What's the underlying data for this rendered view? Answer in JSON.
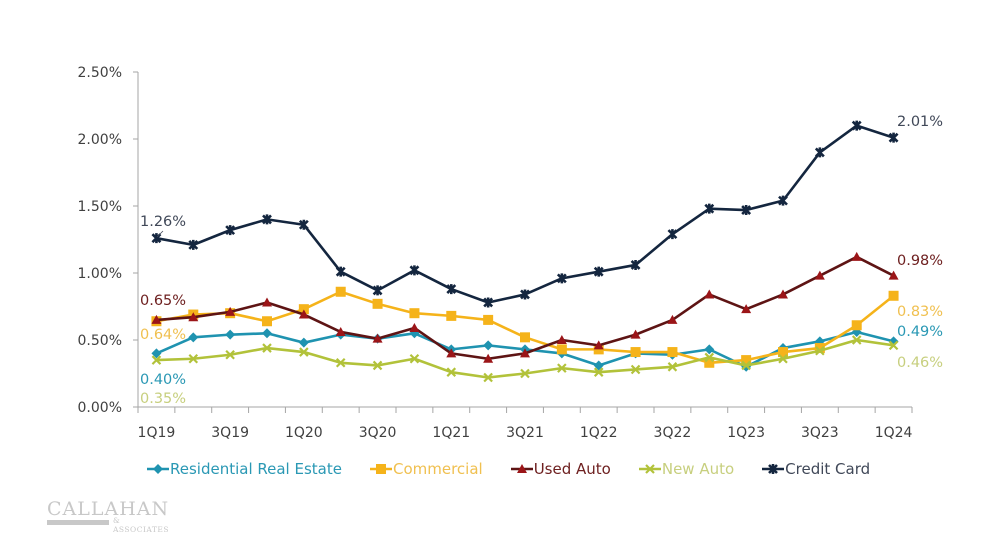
{
  "chart_data": {
    "type": "line",
    "title": "",
    "xlabel": "",
    "ylabel": "",
    "ylim": [
      0,
      2.5
    ],
    "yticks": [
      "0.00%",
      "0.50%",
      "1.00%",
      "1.50%",
      "2.00%",
      "2.50%"
    ],
    "ytick_values": [
      0,
      0.5,
      1.0,
      1.5,
      2.0,
      2.5
    ],
    "x": [
      "1Q19",
      "2Q19",
      "3Q19",
      "4Q19",
      "1Q20",
      "2Q20",
      "3Q20",
      "4Q20",
      "1Q21",
      "2Q21",
      "3Q21",
      "4Q21",
      "1Q22",
      "2Q22",
      "3Q22",
      "4Q22",
      "1Q23",
      "2Q23",
      "3Q23",
      "4Q23",
      "1Q24"
    ],
    "xtick_labels": [
      "1Q19",
      "3Q19",
      "1Q20",
      "3Q20",
      "1Q21",
      "3Q21",
      "1Q22",
      "3Q22",
      "1Q23",
      "3Q23",
      "1Q24"
    ],
    "grid": false,
    "legend_position": "bottom",
    "series": [
      {
        "name": "Residential Real Estate",
        "color": "#1f93b0",
        "marker": "diamond",
        "values": [
          0.4,
          0.52,
          0.54,
          0.55,
          0.48,
          0.54,
          0.51,
          0.55,
          0.43,
          0.46,
          0.43,
          0.4,
          0.31,
          0.4,
          0.39,
          0.43,
          0.3,
          0.44,
          0.49,
          0.56,
          0.49
        ],
        "start_label": "0.40%",
        "end_label": "0.49%"
      },
      {
        "name": "Commercial",
        "color": "#f5b31a",
        "marker": "square",
        "values": [
          0.64,
          0.69,
          0.7,
          0.64,
          0.73,
          0.86,
          0.77,
          0.7,
          0.68,
          0.65,
          0.52,
          0.43,
          0.43,
          0.41,
          0.41,
          0.33,
          0.35,
          0.41,
          0.44,
          0.61,
          0.83
        ],
        "start_label": "0.64%",
        "end_label": "0.83%"
      },
      {
        "name": "Used Auto",
        "color": "#9b1518",
        "line_color": "#5e1414",
        "marker": "triangle",
        "values": [
          0.65,
          0.67,
          0.71,
          0.78,
          0.69,
          0.56,
          0.51,
          0.59,
          0.4,
          0.36,
          0.4,
          0.5,
          0.46,
          0.54,
          0.65,
          0.84,
          0.73,
          0.84,
          0.98,
          1.12,
          0.98
        ],
        "start_label": "0.65%",
        "end_label": "0.98%"
      },
      {
        "name": "New Auto",
        "color": "#b2c23a",
        "marker": "x",
        "values": [
          0.35,
          0.36,
          0.39,
          0.44,
          0.41,
          0.33,
          0.31,
          0.36,
          0.26,
          0.22,
          0.25,
          0.29,
          0.26,
          0.28,
          0.3,
          0.37,
          0.31,
          0.36,
          0.42,
          0.5,
          0.46
        ],
        "start_label": "0.35%",
        "end_label": "0.46%"
      },
      {
        "name": "Credit Card",
        "color": "#14263f",
        "marker": "star",
        "values": [
          1.26,
          1.21,
          1.32,
          1.4,
          1.36,
          1.01,
          0.87,
          1.02,
          0.88,
          0.78,
          0.84,
          0.96,
          1.01,
          1.06,
          1.29,
          1.48,
          1.47,
          1.54,
          1.9,
          2.1,
          2.01
        ],
        "start_label": "1.26%",
        "end_label": "2.01%"
      }
    ]
  },
  "label_colors": {
    "Residential Real Estate": "#2a98b4",
    "Commercial": "#f0c050",
    "Used Auto": "#6e2020",
    "New Auto": "#c7cf7e",
    "Credit Card": "#404858"
  },
  "logo": {
    "name": "CALLAHAN",
    "sub": "& ASSOCIATES"
  }
}
